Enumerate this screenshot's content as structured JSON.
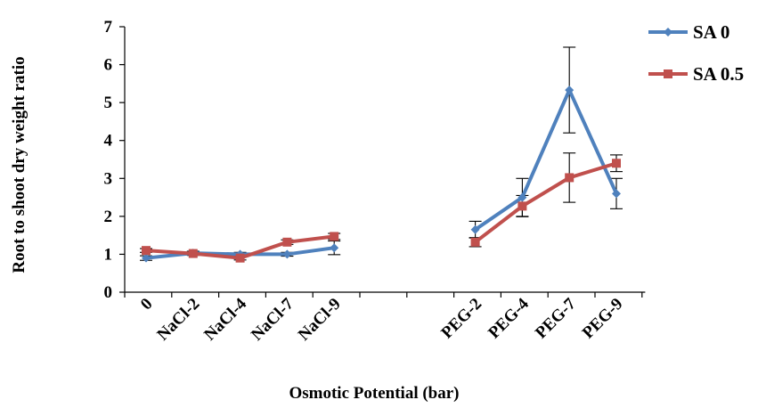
{
  "chart_data": {
    "type": "line",
    "xlabel": "Osmotic Potential (bar)",
    "ylabel": "Root to shoot dry weight ratio",
    "ylim": [
      0,
      7
    ],
    "yticks": [
      "0",
      "1",
      "2",
      "3",
      "4",
      "5",
      "6",
      "7"
    ],
    "categories": [
      "0",
      "NaCl-2",
      "NaCl-4",
      "NaCl-7",
      "NaCl-9",
      "",
      "",
      "PEG-2",
      "PEG-4",
      "PEG-7",
      "PEG-9"
    ],
    "legend_position": "top-right",
    "series": [
      {
        "name": "SA 0",
        "color": "#4F81BD",
        "marker": "diamond",
        "values": [
          0.9,
          1.03,
          1.0,
          1.0,
          1.17,
          null,
          null,
          1.65,
          2.5,
          5.33,
          2.6
        ],
        "errors": [
          0.06,
          0.05,
          0.05,
          0.05,
          0.18,
          null,
          null,
          0.22,
          0.5,
          1.13,
          0.4
        ]
      },
      {
        "name": "SA 0.5",
        "color": "#C0504D",
        "marker": "square",
        "values": [
          1.1,
          1.02,
          0.9,
          1.32,
          1.47,
          null,
          null,
          1.32,
          2.27,
          3.02,
          3.4
        ],
        "errors": [
          0.05,
          0.05,
          0.05,
          0.06,
          0.08,
          null,
          null,
          0.12,
          0.28,
          0.65,
          0.22
        ]
      }
    ]
  }
}
